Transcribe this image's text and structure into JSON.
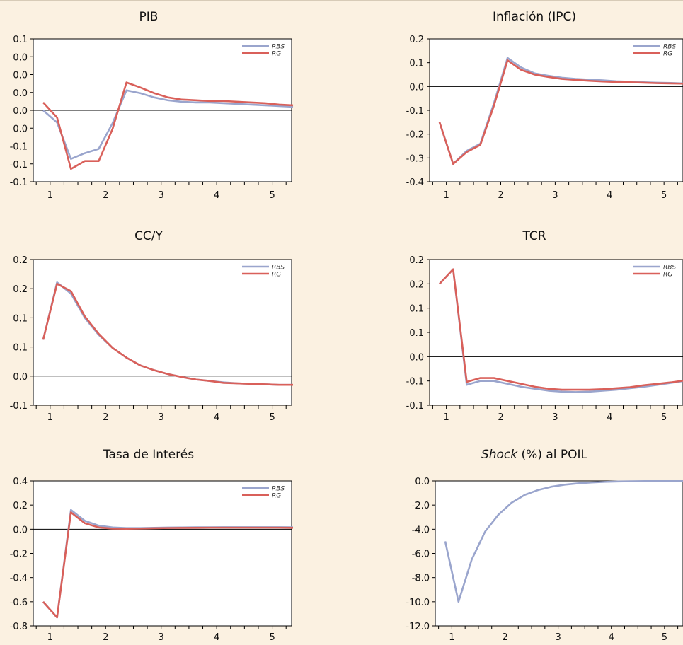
{
  "chart_data": [
    {
      "type": "line",
      "title": "PIB",
      "ytick_labels": [
        "0.1",
        "0.0",
        "0.0",
        "0.0",
        "0.0",
        "0.0",
        "-0.1",
        "-0.1",
        "-0.1"
      ],
      "xtick_labels": [
        "1",
        "2",
        "3",
        "4",
        "5"
      ],
      "series": [
        {
          "name": "RBS",
          "color": "#9aa5cd",
          "values": [
            0.0,
            -0.017,
            -0.068,
            -0.06,
            -0.054,
            -0.018,
            0.028,
            0.024,
            0.018,
            0.014,
            0.012,
            0.011,
            0.011,
            0.01,
            0.009,
            0.008,
            0.007,
            0.006,
            0.005
          ]
        },
        {
          "name": "RG",
          "color": "#d9605a",
          "values": [
            0.011,
            -0.01,
            -0.082,
            -0.071,
            -0.071,
            -0.026,
            0.039,
            0.032,
            0.024,
            0.018,
            0.015,
            0.014,
            0.013,
            0.013,
            0.012,
            0.011,
            0.01,
            0.008,
            0.007
          ]
        }
      ]
    },
    {
      "type": "line",
      "title": "Inflación (IPC)",
      "ytick_labels": [
        "0.2",
        "0.1",
        "0.0",
        "-0.1",
        "-0.2",
        "-0.3",
        "-0.4"
      ],
      "xtick_labels": [
        "1",
        "2",
        "3",
        "4",
        "5"
      ],
      "series": [
        {
          "name": "RBS",
          "color": "#9aa5cd",
          "values": [
            -0.15,
            -0.325,
            -0.27,
            -0.24,
            -0.07,
            0.12,
            0.08,
            0.055,
            0.045,
            0.037,
            0.032,
            0.029,
            0.026,
            0.022,
            0.02,
            0.018,
            0.016,
            0.015,
            0.013
          ]
        },
        {
          "name": "RG",
          "color": "#d9605a",
          "values": [
            -0.15,
            -0.325,
            -0.275,
            -0.245,
            -0.08,
            0.11,
            0.07,
            0.05,
            0.04,
            0.032,
            0.028,
            0.024,
            0.021,
            0.019,
            0.018,
            0.016,
            0.014,
            0.013,
            0.012
          ]
        }
      ]
    },
    {
      "type": "line",
      "title": "CC/Y",
      "ytick_labels": [
        "0.2",
        "0.2",
        "0.1",
        "0.1",
        "0.0",
        "-0.1"
      ],
      "xtick_labels": [
        "1",
        "2",
        "3",
        "4",
        "5"
      ],
      "series": [
        {
          "name": "RBS",
          "color": "#9aa5cd",
          "values": [
            0.085,
            0.203,
            0.18,
            0.13,
            0.095,
            0.068,
            0.048,
            0.032,
            0.022,
            0.014,
            0.008,
            0.003,
            0.0,
            -0.003,
            -0.005,
            -0.006,
            -0.007,
            -0.008,
            -0.008
          ]
        },
        {
          "name": "RG",
          "color": "#d9605a",
          "values": [
            0.085,
            0.2,
            0.185,
            0.133,
            0.097,
            0.068,
            0.048,
            0.032,
            0.022,
            0.014,
            0.008,
            0.003,
            0.0,
            -0.004,
            -0.005,
            -0.006,
            -0.007,
            -0.008,
            -0.008
          ]
        }
      ]
    },
    {
      "type": "line",
      "title": "TCR",
      "ytick_labels": [
        "0.2",
        "0.2",
        "0.1",
        "0.1",
        "0.0",
        "-0.1",
        "-0.1"
      ],
      "xtick_labels": [
        "1",
        "2",
        "3",
        "4",
        "5"
      ],
      "series": [
        {
          "name": "RBS",
          "color": "#9aa5cd",
          "values": [
            0.15,
            0.18,
            -0.058,
            -0.05,
            -0.05,
            -0.056,
            -0.062,
            -0.066,
            -0.07,
            -0.072,
            -0.073,
            -0.072,
            -0.07,
            -0.068,
            -0.065,
            -0.062,
            -0.058,
            -0.054,
            -0.05
          ]
        },
        {
          "name": "RG",
          "color": "#d9605a",
          "values": [
            0.15,
            0.18,
            -0.052,
            -0.044,
            -0.044,
            -0.05,
            -0.056,
            -0.062,
            -0.066,
            -0.068,
            -0.068,
            -0.068,
            -0.067,
            -0.065,
            -0.063,
            -0.059,
            -0.056,
            -0.053,
            -0.049
          ]
        }
      ]
    },
    {
      "type": "line",
      "title": "Tasa de Interés",
      "ytick_labels": [
        "0.4",
        "0.2",
        "0.0",
        "-0.2",
        "-0.4",
        "-0.6",
        "-0.8"
      ],
      "xtick_labels": [
        "1",
        "2",
        "3",
        "4",
        "5"
      ],
      "series": [
        {
          "name": "RBS",
          "color": "#9aa5cd",
          "values": [
            -0.6,
            -0.73,
            0.16,
            0.07,
            0.03,
            0.015,
            0.01,
            0.01,
            0.012,
            0.014,
            0.015,
            0.016,
            0.016,
            0.017,
            0.017,
            0.017,
            0.017,
            0.017,
            0.016
          ]
        },
        {
          "name": "RG",
          "color": "#d9605a",
          "values": [
            -0.6,
            -0.73,
            0.14,
            0.05,
            0.015,
            0.005,
            0.004,
            0.006,
            0.008,
            0.01,
            0.011,
            0.012,
            0.013,
            0.013,
            0.013,
            0.013,
            0.013,
            0.013,
            0.012
          ]
        }
      ]
    },
    {
      "type": "line",
      "title_prefix": "Shock",
      "title_rest": " (%) al POIL",
      "ytick_labels": [
        "0.0",
        "-2.0",
        "-4.0",
        "-6.0",
        "-8.0",
        "-10.0",
        "-12.0"
      ],
      "xtick_labels": [
        "1",
        "2",
        "3",
        "4",
        "5"
      ],
      "series": [
        {
          "name": "",
          "color": "#9aa5cd",
          "values": [
            -5.0,
            -10.0,
            -6.5,
            -4.2,
            -2.8,
            -1.8,
            -1.15,
            -0.75,
            -0.48,
            -0.31,
            -0.2,
            -0.13,
            -0.08,
            -0.05,
            -0.03,
            -0.02,
            -0.01,
            -0.006,
            -0.003
          ]
        }
      ]
    }
  ]
}
